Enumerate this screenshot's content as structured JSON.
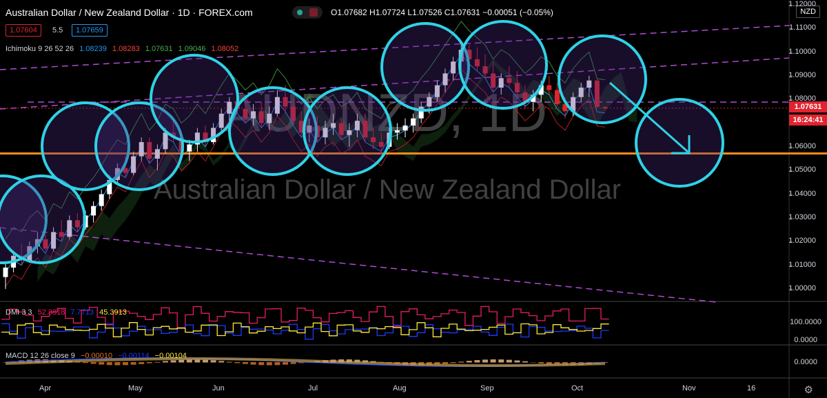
{
  "header": {
    "symbol_title": "Australian Dollar / New Zealand Dollar · 1D · FOREX.com",
    "ohlc": "O1.07682  H1.07724  L1.07526  C1.07631  −0.00051 (−0.05%)",
    "currency": "NZD",
    "bid": "1.07604",
    "spread": "5.5",
    "ask": "1.07659"
  },
  "indicators": {
    "ichimoku": {
      "label": "Ichimoku 9 26 52 26",
      "values": [
        "1.08239",
        "1.08283",
        "1.07631",
        "1.09046",
        "1.08052"
      ],
      "colors": [
        "#2196f3",
        "#f44336",
        "#4caf50",
        "#4caf50",
        "#f44336"
      ]
    },
    "dmi": {
      "label": "DMI 3 3",
      "values": [
        "52.3818",
        "7.7713",
        "45.3913"
      ],
      "colors": [
        "#e91e63",
        "#1e3cff",
        "#ffeb3b"
      ]
    },
    "macd": {
      "label": "MACD 12 26 close 9",
      "values": [
        "−0.00010",
        "−0.00114",
        "−0.00104"
      ],
      "colors": [
        "#e0781f",
        "#1e3cff",
        "#ffeb3b"
      ]
    }
  },
  "watermark": {
    "ticker": "AUDNZD, 1D",
    "name": "Australian Dollar / New Zealand Dollar"
  },
  "price_axis": {
    "ticks": [
      "1.12000",
      "1.11000",
      "1.10000",
      "1.09000",
      "1.08000",
      "1.07000",
      "1.06000",
      "1.05000",
      "1.04000",
      "1.03000",
      "1.02000",
      "1.01000",
      "1.00000"
    ],
    "current_price": "1.07631",
    "countdown": "16:24:41"
  },
  "dmi_axis": {
    "ticks": [
      "100.0000",
      "0.0000"
    ]
  },
  "macd_axis": {
    "ticks": [
      "0.0000"
    ]
  },
  "time_axis": {
    "labels": [
      "Apr",
      "May",
      "Jun",
      "Jul",
      "Aug",
      "Sep",
      "Oct",
      "Nov",
      "16"
    ]
  },
  "colors": {
    "bull": "#ffffff",
    "bear": "#e0242f",
    "support_line": "#ff8c1a",
    "circles": "#2fd2e6",
    "channel": "#b04bd8",
    "price_tag": "#e0242f"
  },
  "chart_data": {
    "type": "candlestick",
    "support_level": 1.0572,
    "current_price": 1.07631,
    "y_range": [
      0.995,
      1.122
    ],
    "candles": [
      [
        1.005,
        1.011,
        1.0,
        1.009
      ],
      [
        1.009,
        1.016,
        1.007,
        1.014
      ],
      [
        1.014,
        1.019,
        1.01,
        1.012
      ],
      [
        1.012,
        1.02,
        1.011,
        1.018
      ],
      [
        1.018,
        1.024,
        1.015,
        1.021
      ],
      [
        1.021,
        1.023,
        1.016,
        1.017
      ],
      [
        1.017,
        1.026,
        1.016,
        1.024
      ],
      [
        1.024,
        1.029,
        1.02,
        1.022
      ],
      [
        1.022,
        1.031,
        1.021,
        1.029
      ],
      [
        1.029,
        1.032,
        1.024,
        1.026
      ],
      [
        1.026,
        1.033,
        1.025,
        1.031
      ],
      [
        1.031,
        1.037,
        1.028,
        1.035
      ],
      [
        1.035,
        1.042,
        1.033,
        1.04
      ],
      [
        1.04,
        1.048,
        1.038,
        1.046
      ],
      [
        1.046,
        1.053,
        1.044,
        1.051
      ],
      [
        1.051,
        1.056,
        1.047,
        1.049
      ],
      [
        1.049,
        1.058,
        1.048,
        1.056
      ],
      [
        1.056,
        1.064,
        1.054,
        1.062
      ],
      [
        1.062,
        1.064,
        1.053,
        1.055
      ],
      [
        1.055,
        1.061,
        1.05,
        1.059
      ],
      [
        1.059,
        1.068,
        1.057,
        1.066
      ],
      [
        1.066,
        1.072,
        1.062,
        1.064
      ],
      [
        1.064,
        1.066,
        1.056,
        1.058
      ],
      [
        1.058,
        1.063,
        1.054,
        1.061
      ],
      [
        1.061,
        1.068,
        1.058,
        1.066
      ],
      [
        1.066,
        1.069,
        1.06,
        1.062
      ],
      [
        1.062,
        1.07,
        1.061,
        1.068
      ],
      [
        1.068,
        1.076,
        1.066,
        1.074
      ],
      [
        1.074,
        1.081,
        1.071,
        1.079
      ],
      [
        1.079,
        1.083,
        1.074,
        1.076
      ],
      [
        1.076,
        1.08,
        1.07,
        1.072
      ],
      [
        1.072,
        1.078,
        1.069,
        1.075
      ],
      [
        1.075,
        1.079,
        1.068,
        1.07
      ],
      [
        1.07,
        1.077,
        1.067,
        1.074
      ],
      [
        1.074,
        1.084,
        1.073,
        1.081
      ],
      [
        1.081,
        1.086,
        1.074,
        1.077
      ],
      [
        1.077,
        1.08,
        1.069,
        1.071
      ],
      [
        1.071,
        1.075,
        1.064,
        1.066
      ],
      [
        1.066,
        1.072,
        1.062,
        1.069
      ],
      [
        1.069,
        1.073,
        1.062,
        1.064
      ],
      [
        1.064,
        1.071,
        1.061,
        1.068
      ],
      [
        1.068,
        1.074,
        1.065,
        1.07
      ],
      [
        1.07,
        1.072,
        1.063,
        1.065
      ],
      [
        1.065,
        1.07,
        1.06,
        1.067
      ],
      [
        1.067,
        1.074,
        1.064,
        1.071
      ],
      [
        1.071,
        1.074,
        1.062,
        1.064
      ],
      [
        1.064,
        1.068,
        1.059,
        1.062
      ],
      [
        1.062,
        1.066,
        1.057,
        1.06
      ],
      [
        1.06,
        1.068,
        1.059,
        1.066
      ],
      [
        1.066,
        1.07,
        1.063,
        1.067
      ],
      [
        1.067,
        1.072,
        1.064,
        1.069
      ],
      [
        1.069,
        1.074,
        1.066,
        1.072
      ],
      [
        1.072,
        1.079,
        1.07,
        1.077
      ],
      [
        1.077,
        1.083,
        1.074,
        1.081
      ],
      [
        1.081,
        1.088,
        1.079,
        1.086
      ],
      [
        1.086,
        1.093,
        1.083,
        1.091
      ],
      [
        1.091,
        1.098,
        1.088,
        1.096
      ],
      [
        1.096,
        1.104,
        1.093,
        1.101
      ],
      [
        1.101,
        1.103,
        1.095,
        1.097
      ],
      [
        1.097,
        1.102,
        1.092,
        1.094
      ],
      [
        1.094,
        1.099,
        1.089,
        1.091
      ],
      [
        1.091,
        1.096,
        1.083,
        1.085
      ],
      [
        1.085,
        1.091,
        1.082,
        1.089
      ],
      [
        1.089,
        1.094,
        1.085,
        1.087
      ],
      [
        1.087,
        1.092,
        1.081,
        1.083
      ],
      [
        1.083,
        1.086,
        1.076,
        1.079
      ],
      [
        1.079,
        1.084,
        1.075,
        1.082
      ],
      [
        1.082,
        1.088,
        1.079,
        1.086
      ],
      [
        1.086,
        1.09,
        1.082,
        1.084
      ],
      [
        1.084,
        1.087,
        1.077,
        1.078
      ],
      [
        1.078,
        1.081,
        1.072,
        1.075
      ],
      [
        1.075,
        1.083,
        1.073,
        1.081
      ],
      [
        1.081,
        1.087,
        1.079,
        1.085
      ],
      [
        1.085,
        1.09,
        1.081,
        1.088
      ],
      [
        1.088,
        1.089,
        1.078,
        1.0768
      ],
      [
        1.0768,
        1.0772,
        1.0753,
        1.0763
      ]
    ]
  }
}
